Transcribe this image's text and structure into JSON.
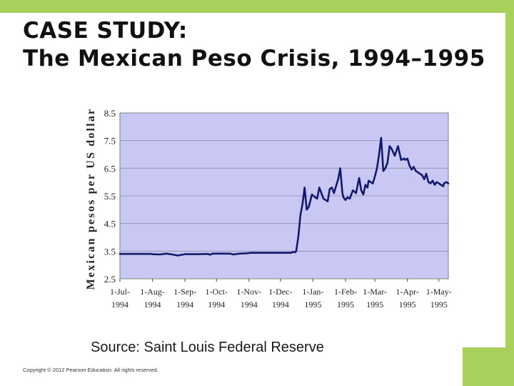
{
  "slide": {
    "title_line1": "CASE STUDY:",
    "title_line2": "The Mexican Peso Crisis, 1994–1995",
    "source": "Source: Saint Louis Federal Reserve",
    "copyright": "Copyright © 2012 Pearson Education. All rights reserved."
  },
  "colors": {
    "accent_green": "#a9d05a",
    "plot_bg": "#c9c8f4",
    "line": "#121a6e"
  },
  "chart_data": {
    "type": "line",
    "title": "",
    "xlabel": "",
    "ylabel": "Mexican pesos per US dollar",
    "ylim": [
      2.5,
      8.5
    ],
    "yticks": [
      2.5,
      3.5,
      4.5,
      5.5,
      6.5,
      7.5,
      8.5
    ],
    "ytick_labels": [
      "2.5",
      "3.5",
      "4.5",
      "5.5",
      "6.5",
      "7.5",
      "8.5"
    ],
    "xlim": [
      0,
      313
    ],
    "xticks": [
      {
        "x": 0,
        "label1": "1-Jul-",
        "label2": "1994"
      },
      {
        "x": 31,
        "label1": "1-Aug-",
        "label2": "1994"
      },
      {
        "x": 62,
        "label1": "1-Sep-",
        "label2": "1994"
      },
      {
        "x": 92,
        "label1": "1-Oct-",
        "label2": "1994"
      },
      {
        "x": 123,
        "label1": "1-Nov-",
        "label2": "1994"
      },
      {
        "x": 153,
        "label1": "1-Dec-",
        "label2": "1994"
      },
      {
        "x": 184,
        "label1": "1-Jan-",
        "label2": "1995"
      },
      {
        "x": 215,
        "label1": "1-Feb-",
        "label2": "1995"
      },
      {
        "x": 243,
        "label1": "1-Mar-",
        "label2": "1995"
      },
      {
        "x": 274,
        "label1": "1-Apr-",
        "label2": "1995"
      },
      {
        "x": 304,
        "label1": "1-May-",
        "label2": "1995"
      }
    ],
    "grid": true,
    "series": [
      {
        "name": "Mexican pesos per US dollar",
        "x": [
          0,
          20,
          30,
          31,
          38,
          44,
          50,
          55,
          62,
          75,
          84,
          86,
          88,
          105,
          108,
          114,
          120,
          125,
          140,
          153,
          163,
          165,
          167,
          168,
          170,
          172,
          174,
          176,
          178,
          180,
          183,
          186,
          188,
          190,
          192,
          194,
          196,
          198,
          200,
          202,
          204,
          206,
          208,
          210,
          212,
          213,
          215,
          217,
          219,
          222,
          225,
          228,
          230,
          232,
          234,
          236,
          237,
          239,
          241,
          243,
          245,
          247,
          249,
          251,
          252,
          253,
          255,
          257,
          259,
          262,
          265,
          268,
          271,
          272,
          274,
          276,
          278,
          280,
          282,
          284,
          286,
          288,
          290,
          292,
          294,
          296,
          298,
          300,
          302,
          304,
          306,
          308,
          309,
          311,
          313
        ],
        "y": [
          3.4,
          3.4,
          3.4,
          3.39,
          3.38,
          3.41,
          3.38,
          3.34,
          3.39,
          3.39,
          3.4,
          3.37,
          3.41,
          3.41,
          3.38,
          3.41,
          3.42,
          3.44,
          3.44,
          3.44,
          3.44,
          3.47,
          3.46,
          3.5,
          4.0,
          4.8,
          5.2,
          5.8,
          5.0,
          5.1,
          5.55,
          5.45,
          5.4,
          5.8,
          5.6,
          5.4,
          5.35,
          5.3,
          5.75,
          5.8,
          5.6,
          5.85,
          6.1,
          6.5,
          5.6,
          5.45,
          5.35,
          5.45,
          5.4,
          5.7,
          5.6,
          6.15,
          5.7,
          5.55,
          5.9,
          5.8,
          6.05,
          6.0,
          5.95,
          6.2,
          6.5,
          7.0,
          7.6,
          6.4,
          6.45,
          6.5,
          6.7,
          7.3,
          7.2,
          6.95,
          7.3,
          6.8,
          6.85,
          6.8,
          6.85,
          6.6,
          6.45,
          6.55,
          6.4,
          6.35,
          6.3,
          6.25,
          6.1,
          6.3,
          6.0,
          5.95,
          6.05,
          5.9,
          6.0,
          5.95,
          5.9,
          5.85,
          5.95,
          6.0,
          5.95
        ]
      }
    ]
  }
}
